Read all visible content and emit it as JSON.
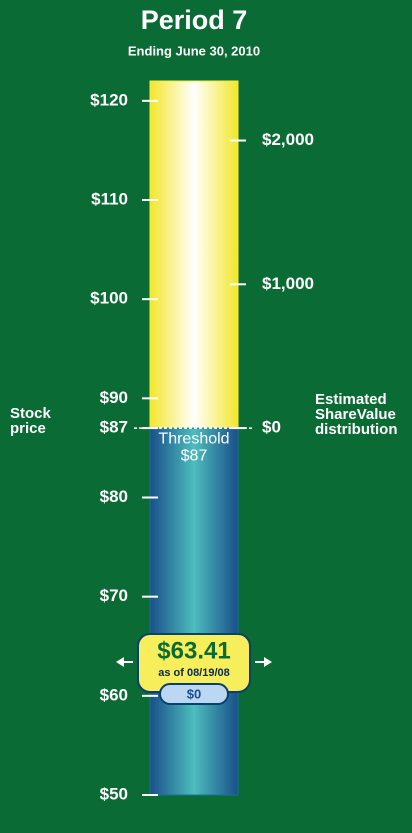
{
  "chart_data": {
    "type": "gauge",
    "title": "Period 7",
    "subtitle": "Ending June 30, 2010",
    "ylabel": "Stock price",
    "y2label": "Estimated ShareValue distribution",
    "ylim": [
      50,
      122
    ],
    "yticks": [
      {
        "value": 120,
        "label": "$120"
      },
      {
        "value": 110,
        "label": "$110"
      },
      {
        "value": 100,
        "label": "$100"
      },
      {
        "value": 90,
        "label": "$90"
      },
      {
        "value": 87,
        "label": "$87"
      },
      {
        "value": 80,
        "label": "$80"
      },
      {
        "value": 70,
        "label": "$70"
      },
      {
        "value": 60,
        "label": "$60"
      },
      {
        "value": 50,
        "label": "$50"
      }
    ],
    "y2lim": [
      -2552,
      2414
    ],
    "y2ticks": [
      {
        "value": 2000,
        "label": "$2,000"
      },
      {
        "value": 1000,
        "label": "$1,000"
      },
      {
        "value": 0,
        "label": "$0"
      }
    ],
    "threshold": 87,
    "threshold_label": "Threshold",
    "threshold_value_label": "$87",
    "value": 63.41,
    "value_label": "$63.41",
    "date_label": "as of 08/19/08",
    "distribution": 0,
    "distribution_label": "$0",
    "background": "#0b6b34",
    "upper_color": "#f5ee3a",
    "lower_color": "#1f6f9e"
  }
}
